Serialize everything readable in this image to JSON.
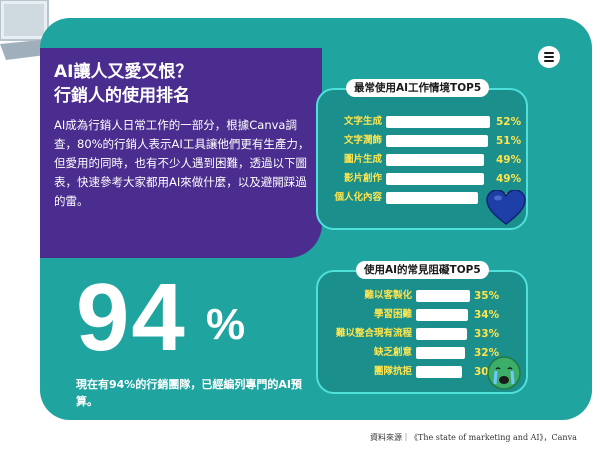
{
  "intro": {
    "title_line1": "AI讓人又愛又恨？",
    "title_line2": "行銷人的使用排名",
    "body": "AI成為行銷人日常工作的一部分，根據Canva調查，80%的行銷人表示AI工具讓他們更有生產力，但愛用的同時，也有不少人遇到困難，透過以下圖表，快速參考大家都用AI來做什麼，以及避開踩過的雷。"
  },
  "stat": {
    "number": "94",
    "percent_sign": "%",
    "caption": "現在有94%的行銷團隊，已經編列專門的AI預算。"
  },
  "icons": {
    "menu": "menu-icon",
    "heart": "blue-heart-icon",
    "crying": "crying-face-icon",
    "laptop": "laptop-icon"
  },
  "colors": {
    "teal": "#1fa49f",
    "purple": "#4a2d8e",
    "panel": "#1b8f8b",
    "label": "#ffe54d",
    "bar": "#ffffff"
  },
  "source": "資料來源｜《The state of marketing and AI》，Canva",
  "chart_data": [
    {
      "type": "bar",
      "orientation": "horizontal",
      "title": "最常使用AI工作情境TOP5",
      "categories": [
        "文字生成",
        "文字潤飾",
        "圖片生成",
        "影片創作",
        "個人化內容"
      ],
      "values": [
        52,
        51,
        49,
        49,
        46
      ],
      "value_labels": [
        "52%",
        "51%",
        "49%",
        "49%",
        "46%"
      ],
      "xlim": [
        0,
        52
      ]
    },
    {
      "type": "bar",
      "orientation": "horizontal",
      "title": "使用AI的常見阻礙TOP5",
      "categories": [
        "難以客製化",
        "學習困難",
        "難以整合現有流程",
        "缺乏創意",
        "團隊抗拒"
      ],
      "values": [
        35,
        34,
        33,
        32,
        30
      ],
      "value_labels": [
        "35%",
        "34%",
        "33%",
        "32%",
        "30%"
      ],
      "xlim": [
        0,
        35
      ]
    }
  ]
}
